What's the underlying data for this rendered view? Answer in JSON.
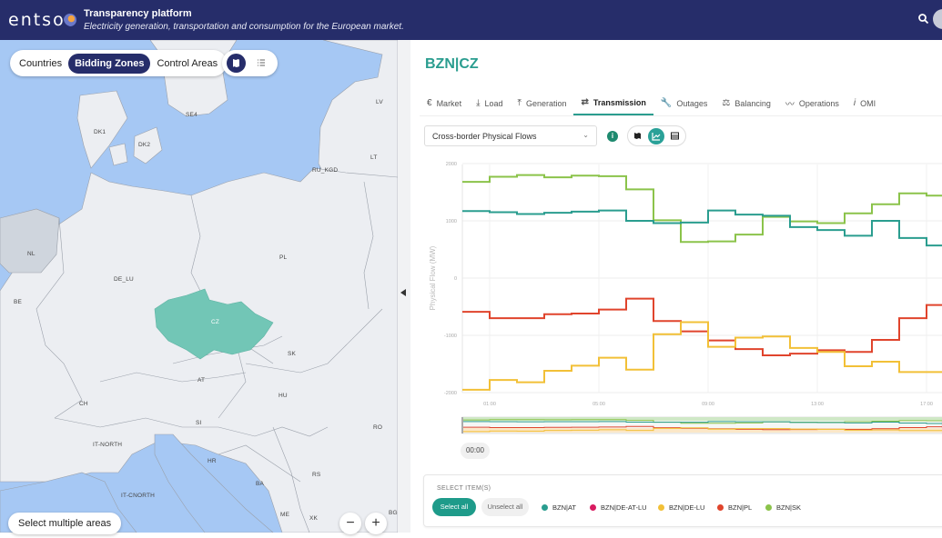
{
  "header": {
    "logo_text": "entso",
    "logo_suffix": "e",
    "title": "Transparency platform",
    "subtitle": "Electricity generation, transportation and consumption for the European market.",
    "search_icon": "search-icon"
  },
  "map": {
    "area_types": [
      {
        "label": "Countries",
        "active": false
      },
      {
        "label": "Bidding Zones",
        "active": true
      },
      {
        "label": "Control Areas",
        "active": false
      }
    ],
    "view_modes": [
      {
        "icon": "map-icon",
        "active": true
      },
      {
        "icon": "list-icon",
        "active": false
      }
    ],
    "selected_zone": "CZ",
    "zone_labels": [
      "SE4",
      "LV",
      "DK1",
      "DK2",
      "LT",
      "RU_KGD",
      "NL",
      "PL",
      "DE_LU",
      "BE",
      "CZ",
      "SK",
      "AT",
      "HU",
      "CH",
      "SI",
      "RO",
      "IT-NORTH",
      "HR",
      "BA",
      "RS",
      "IT-CNORTH",
      "ME",
      "XK",
      "BG"
    ],
    "select_multiple_label": "Select multiple areas",
    "zoom_out_label": "−",
    "zoom_in_label": "+"
  },
  "panel": {
    "zone_title": "BZN|CZ",
    "tabs": [
      {
        "label": "Market",
        "icon": "€",
        "active": false
      },
      {
        "label": "Load",
        "icon": "⤓",
        "active": false
      },
      {
        "label": "Generation",
        "icon": "⤒",
        "active": false
      },
      {
        "label": "Transmission",
        "icon": "⇄",
        "active": true
      },
      {
        "label": "Outages",
        "icon": "🔧",
        "active": false
      },
      {
        "label": "Balancing",
        "icon": "⚖",
        "active": false
      },
      {
        "label": "Operations",
        "icon": "〰",
        "active": false
      },
      {
        "label": "OMI",
        "icon": "i",
        "active": false
      }
    ],
    "dataset_select": "Cross-border Physical Flows",
    "info_icon": "i",
    "display_modes": [
      {
        "icon": "map-icon",
        "active": false
      },
      {
        "icon": "chart-icon",
        "active": true
      },
      {
        "icon": "table-icon",
        "active": false
      }
    ],
    "time_chip": "00:00",
    "select_items": {
      "title": "SELECT ITEM(S)",
      "select_all": "Select all",
      "unselect_all": "Unselect all",
      "items": [
        {
          "label": "BZN|AT",
          "color": "#2a9d8f"
        },
        {
          "label": "BZN|DE-AT-LU",
          "color": "#d81b60"
        },
        {
          "label": "BZN|DE-LU",
          "color": "#f2c037"
        },
        {
          "label": "BZN|PL",
          "color": "#e0442c"
        },
        {
          "label": "BZN|SK",
          "color": "#8bc34a"
        }
      ]
    }
  },
  "chart_data": {
    "type": "line",
    "step": true,
    "title": "Cross-border Physical Flows",
    "xlabel": "",
    "ylabel": "Physical Flow (MW)",
    "ylim": [
      -2000,
      2000
    ],
    "yticks": [
      "2000",
      "1000",
      "0",
      "-1000",
      "-2000"
    ],
    "xticks": [
      "01:00",
      "05:00",
      "09:00",
      "13:00",
      "17:00"
    ],
    "x": [
      "00:00",
      "01:00",
      "02:00",
      "03:00",
      "04:00",
      "05:00",
      "06:00",
      "07:00",
      "08:00",
      "09:00",
      "10:00",
      "11:00",
      "12:00",
      "13:00",
      "14:00",
      "15:00",
      "16:00",
      "17:00"
    ],
    "grid": true,
    "series": [
      {
        "name": "BZN|SK",
        "color": "#8bc34a",
        "values": [
          1680,
          1770,
          1800,
          1760,
          1790,
          1780,
          1550,
          1010,
          630,
          640,
          760,
          1070,
          990,
          960,
          1130,
          1290,
          1480,
          1440
        ]
      },
      {
        "name": "BZN|AT",
        "color": "#2a9d8f",
        "values": [
          1170,
          1150,
          1120,
          1140,
          1160,
          1180,
          1000,
          960,
          970,
          1180,
          1110,
          1090,
          890,
          840,
          740,
          1000,
          700,
          570
        ]
      },
      {
        "name": "BZN|PL",
        "color": "#e0442c",
        "values": [
          -590,
          -700,
          -700,
          -630,
          -620,
          -550,
          -360,
          -750,
          -930,
          -1090,
          -1240,
          -1350,
          -1320,
          -1260,
          -1290,
          -1080,
          -700,
          -470
        ]
      },
      {
        "name": "BZN|DE-LU",
        "color": "#f2c037",
        "values": [
          -1950,
          -1780,
          -1820,
          -1620,
          -1530,
          -1390,
          -1600,
          -980,
          -770,
          -1200,
          -1040,
          -1020,
          -1220,
          -1290,
          -1540,
          -1460,
          -1640,
          -1640
        ]
      }
    ]
  }
}
